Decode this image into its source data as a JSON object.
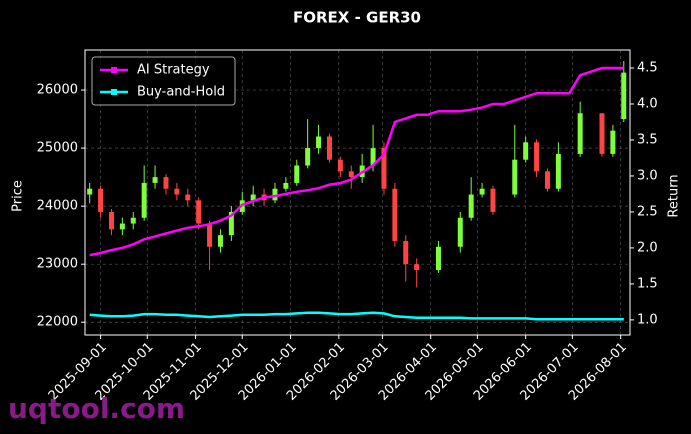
{
  "chart_data": {
    "type": "candlestick",
    "title": "FOREX - GER30",
    "ylabel": "Price",
    "y2label": "Return",
    "watermark": "uqtool.com",
    "x": [
      "2025-08-25",
      "2025-09-01",
      "2025-09-08",
      "2025-09-15",
      "2025-09-22",
      "2025-09-29",
      "2025-10-06",
      "2025-10-13",
      "2025-10-20",
      "2025-10-27",
      "2025-11-03",
      "2025-11-10",
      "2025-11-17",
      "2025-11-24",
      "2025-12-01",
      "2025-12-08",
      "2025-12-15",
      "2025-12-22",
      "2025-12-29",
      "2026-01-05",
      "2026-01-12",
      "2026-01-19",
      "2026-01-26",
      "2026-02-02",
      "2026-02-09",
      "2026-02-16",
      "2026-02-23",
      "2026-03-02",
      "2026-03-09",
      "2026-03-16",
      "2026-03-23",
      "2026-03-30",
      "2026-04-06",
      "2026-04-13",
      "2026-04-20",
      "2026-04-27",
      "2026-05-04",
      "2026-05-11",
      "2026-05-18",
      "2026-05-25",
      "2026-06-01",
      "2026-06-08",
      "2026-06-15",
      "2026-06-22",
      "2026-06-29",
      "2026-07-06",
      "2026-07-13",
      "2026-07-20",
      "2026-07-27",
      "2026-08-03"
    ],
    "open": [
      24200,
      24300,
      23900,
      23600,
      23700,
      23800,
      24400,
      24500,
      24300,
      24200,
      24100,
      23700,
      23300,
      23500,
      23900,
      24100,
      24200,
      24100,
      24300,
      24400,
      24700,
      25000,
      25200,
      24800,
      24600,
      24500,
      24700,
      25000,
      24300,
      23400,
      23000,
      null,
      22900,
      null,
      23300,
      23800,
      24200,
      24300,
      null,
      24200,
      24800,
      25100,
      24600,
      24300,
      null,
      24900,
      null,
      25600,
      24900,
      25500
    ],
    "high": [
      24400,
      24350,
      23950,
      23800,
      23900,
      24700,
      24700,
      24550,
      24400,
      24300,
      24150,
      23750,
      23600,
      24000,
      24250,
      24350,
      24300,
      24400,
      24500,
      24800,
      25500,
      25400,
      25250,
      24850,
      24700,
      24900,
      25400,
      25100,
      24400,
      23500,
      23100,
      null,
      23400,
      null,
      23900,
      24500,
      24400,
      24350,
      null,
      25400,
      25200,
      25150,
      24650,
      25100,
      null,
      25800,
      null,
      25600,
      25400,
      26500
    ],
    "low": [
      24050,
      23800,
      23500,
      23500,
      23600,
      23750,
      24300,
      24200,
      24100,
      24000,
      23600,
      22900,
      23200,
      23400,
      23850,
      24000,
      24000,
      24050,
      24250,
      24350,
      24650,
      24900,
      24750,
      24500,
      24300,
      24400,
      24600,
      24200,
      23300,
      22700,
      22600,
      null,
      22850,
      null,
      23200,
      23750,
      24150,
      23850,
      null,
      24150,
      24750,
      24500,
      24250,
      24250,
      null,
      24850,
      null,
      24850,
      24850,
      25450
    ],
    "close": [
      24300,
      23900,
      23600,
      23700,
      23800,
      24400,
      24500,
      24300,
      24200,
      24100,
      23700,
      23300,
      23500,
      23900,
      24100,
      24200,
      24100,
      24300,
      24400,
      24700,
      25000,
      25200,
      24800,
      24600,
      24500,
      24700,
      25000,
      24300,
      23400,
      23000,
      22900,
      null,
      23300,
      null,
      23800,
      24200,
      24300,
      23900,
      null,
      24800,
      25100,
      24600,
      24300,
      24900,
      null,
      25600,
      null,
      24900,
      25300,
      26300
    ],
    "up_color": "#7fff3a",
    "down_color": "#ff4444",
    "series": [
      {
        "name": "AI Strategy",
        "color": "#ff00ff",
        "axis": "y2",
        "values": [
          1.9,
          1.93,
          1.97,
          2.0,
          2.05,
          2.12,
          2.16,
          2.2,
          2.24,
          2.28,
          2.3,
          2.33,
          2.38,
          2.45,
          2.6,
          2.65,
          2.7,
          2.72,
          2.75,
          2.78,
          2.8,
          2.83,
          2.88,
          2.9,
          2.95,
          3.05,
          3.15,
          3.3,
          3.75,
          3.8,
          3.85,
          3.85,
          3.9,
          3.9,
          3.9,
          3.92,
          3.95,
          4.0,
          4.0,
          4.05,
          4.1,
          4.15,
          4.15,
          4.15,
          4.15,
          4.4,
          4.45,
          4.5,
          4.5,
          4.5
        ]
      },
      {
        "name": "Buy-and-Hold",
        "color": "#00ffff",
        "axis": "y2",
        "values": [
          1.07,
          1.06,
          1.05,
          1.05,
          1.06,
          1.08,
          1.08,
          1.07,
          1.07,
          1.06,
          1.05,
          1.04,
          1.05,
          1.06,
          1.07,
          1.07,
          1.07,
          1.08,
          1.08,
          1.09,
          1.1,
          1.1,
          1.09,
          1.08,
          1.08,
          1.09,
          1.1,
          1.09,
          1.05,
          1.04,
          1.03,
          1.03,
          1.03,
          1.03,
          1.03,
          1.02,
          1.02,
          1.02,
          1.02,
          1.02,
          1.02,
          1.01,
          1.01,
          1.01,
          1.01,
          1.01,
          1.01,
          1.01,
          1.01,
          1.01
        ]
      }
    ],
    "xlim": [
      "2025-08-22",
      "2026-08-07"
    ],
    "xticks": [
      "2025-09-01",
      "2025-10-01",
      "2025-11-01",
      "2025-12-01",
      "2026-01-01",
      "2026-02-01",
      "2026-03-01",
      "2026-04-01",
      "2026-05-01",
      "2026-06-01",
      "2026-07-01",
      "2026-08-01"
    ],
    "ylim": [
      21780,
      26690
    ],
    "yticks": [
      22000,
      23000,
      24000,
      25000,
      26000
    ],
    "y2lim": [
      0.79,
      4.75
    ],
    "y2ticks": [
      {
        "value": 1,
        "label": "1.0"
      },
      1.5,
      {
        "value": 2,
        "label": "2.0"
      },
      2.5,
      {
        "value": 3,
        "label": "3.0"
      },
      3.5,
      {
        "value": 4,
        "label": "4.0"
      },
      4.5
    ],
    "grid": true,
    "legend": "upper left"
  }
}
